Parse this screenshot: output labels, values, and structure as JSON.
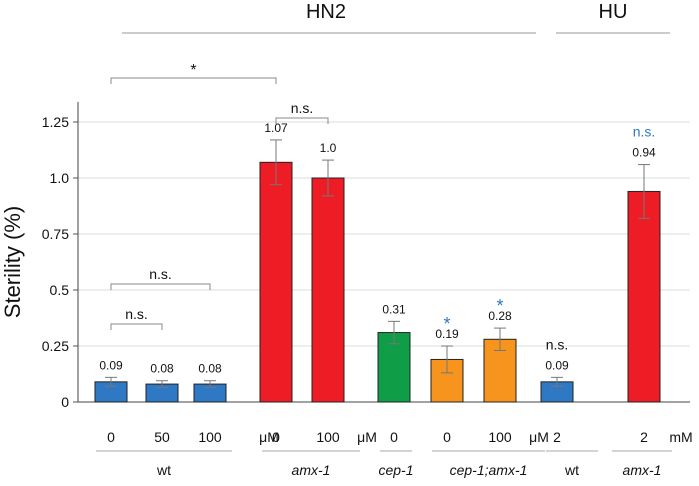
{
  "chart_data": {
    "type": "bar",
    "ylabel": "Sterility (%)",
    "ylim": [
      0,
      1.4
    ],
    "yticks": [
      "0",
      "0.25",
      "0.5",
      "0.75",
      "1.0",
      "1.25"
    ],
    "ytick_values": [
      0,
      0.25,
      0.5,
      0.75,
      1.0,
      1.25
    ],
    "groups": [
      {
        "name": "HN2"
      },
      {
        "name": "HU"
      }
    ],
    "genotypes": [
      {
        "label": "wt",
        "italic": false
      },
      {
        "label": "amx-1",
        "italic": true
      },
      {
        "label": "cep-1",
        "italic": true
      },
      {
        "label": "cep-1;amx-1",
        "italic": true
      },
      {
        "label": "wt",
        "italic": false
      },
      {
        "label": "amx-1",
        "italic": true
      }
    ],
    "bars": [
      {
        "dose": "0",
        "value": 0.09,
        "error": 0.02,
        "value_label": "0.09",
        "color": "#2f78c4",
        "genotype": 0
      },
      {
        "dose": "50",
        "value": 0.08,
        "error": 0.015,
        "value_label": "0.08",
        "color": "#2f78c4",
        "genotype": 0
      },
      {
        "dose": "100",
        "value": 0.08,
        "error": 0.015,
        "value_label": "0.08",
        "color": "#2f78c4",
        "genotype": 0
      },
      {
        "dose": "0",
        "value": 1.07,
        "error": 0.1,
        "value_label": "1.07",
        "color": "#ee1c25",
        "genotype": 1
      },
      {
        "dose": "100",
        "value": 1.0,
        "error": 0.08,
        "value_label": "1.0",
        "color": "#ee1c25",
        "genotype": 1
      },
      {
        "dose": "0",
        "value": 0.31,
        "error": 0.05,
        "value_label": "0.31",
        "color": "#0f9d48",
        "genotype": 2
      },
      {
        "dose": "0",
        "value": 0.19,
        "error": 0.06,
        "value_label": "0.19",
        "color": "#f7941d",
        "genotype": 3
      },
      {
        "dose": "100",
        "value": 0.28,
        "error": 0.05,
        "value_label": "0.28",
        "color": "#f7941d",
        "genotype": 3
      },
      {
        "dose": "2",
        "value": 0.09,
        "error": 0.02,
        "value_label": "0.09",
        "color": "#2f78c4",
        "genotype": 4
      },
      {
        "dose": "2",
        "value": 0.94,
        "error": 0.12,
        "value_label": "0.94",
        "color": "#ee1c25",
        "genotype": 5
      }
    ],
    "unit_labels": [
      "μM",
      "μM",
      "μM",
      "mM"
    ],
    "significance": {
      "star": "*",
      "ns": "n.s.",
      "highlight_color": "#2f78c4",
      "brackets": [
        {
          "from_bar": 0,
          "to_bar": 3,
          "label": "*"
        },
        {
          "from_bar": 3,
          "to_bar": 4,
          "label": "n.s."
        },
        {
          "from_bar": 0,
          "to_bar": 2,
          "label": "n.s."
        },
        {
          "from_bar": 0,
          "to_bar": 1,
          "label": "n.s."
        }
      ],
      "bar_marks": [
        {
          "bar": 6,
          "label": "*",
          "highlight": true
        },
        {
          "bar": 7,
          "label": "*",
          "highlight": true
        },
        {
          "bar": 8,
          "label": "n.s.",
          "highlight": false
        },
        {
          "bar": 9,
          "label": "n.s.",
          "highlight": true
        }
      ]
    }
  }
}
